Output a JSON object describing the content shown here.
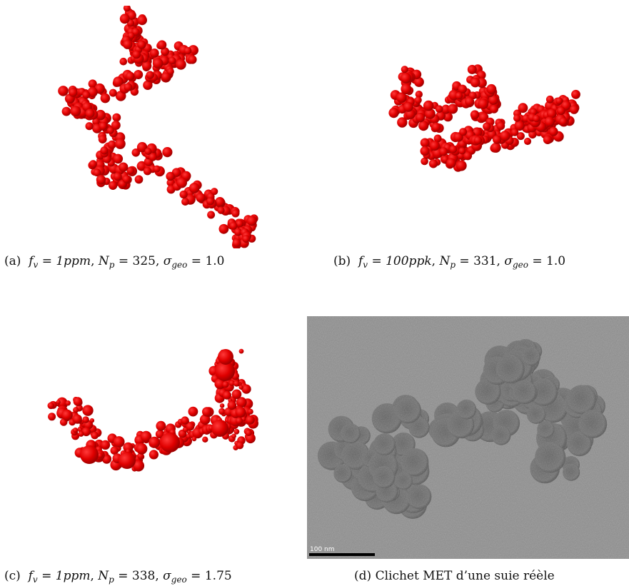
{
  "figure": {
    "panels": [
      {
        "id": "a",
        "label": "(a)",
        "caption_parts": [
          "1ppm",
          "325",
          "1.0"
        ]
      },
      {
        "id": "b",
        "label": "(b)",
        "caption_parts": [
          "100ppk",
          "331",
          "1.0"
        ]
      },
      {
        "id": "c",
        "label": "(c)",
        "caption_parts": [
          "1ppm",
          "338",
          "1.75"
        ]
      },
      {
        "id": "d",
        "label": "(d)",
        "caption": "Clichet MET d’une suie réèle",
        "scale_bar": "100 nm"
      }
    ],
    "symbols": {
      "fv": "f",
      "fv_sub": "v",
      "np": "N",
      "np_sub": "p",
      "sigma": "σ",
      "sigma_sub": "geo"
    },
    "colors": {
      "particle": "#e00000",
      "particle_dark": "#b30000",
      "tem_background": "#8e8e8e"
    }
  }
}
